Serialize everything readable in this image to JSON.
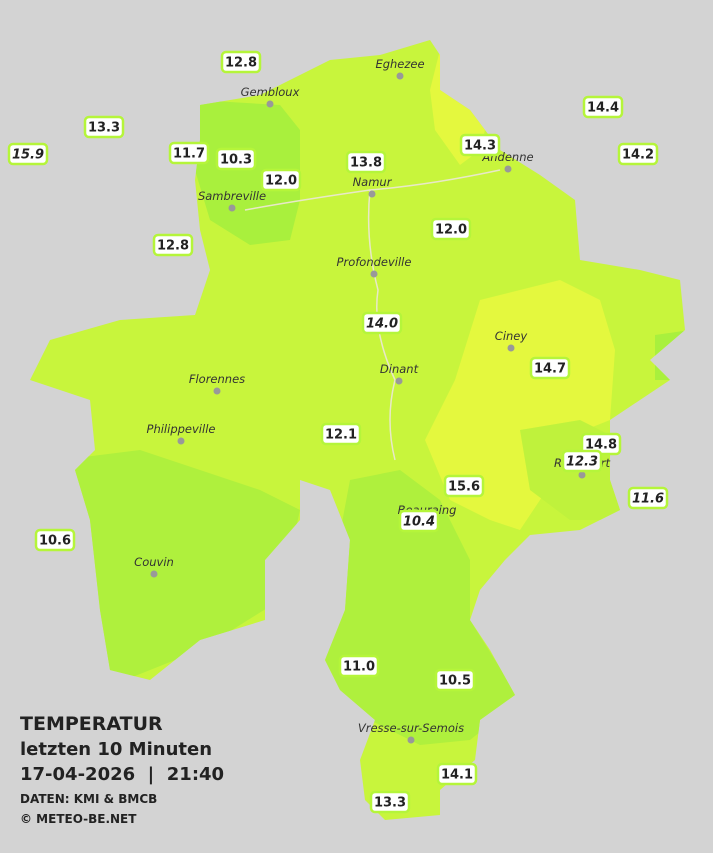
{
  "header": {
    "title": "TEMPERATUR",
    "subtitle": "letzten 10 Minuten",
    "datetime": "17-04-2026  |  21:40",
    "source": "DATEN: KMI & BMCB",
    "copyright": "© METEO-BE.NET"
  },
  "cities": [
    {
      "name": "Eghezee"
    },
    {
      "name": "Gembloux"
    },
    {
      "name": "Andenne"
    },
    {
      "name": "Namur"
    },
    {
      "name": "Sambreville"
    },
    {
      "name": "Profondeville"
    },
    {
      "name": "Ciney"
    },
    {
      "name": "Dinant"
    },
    {
      "name": "Florennes"
    },
    {
      "name": "Philippeville"
    },
    {
      "name": "Rochefort"
    },
    {
      "name": "Couvin"
    },
    {
      "name": "Beauraing"
    },
    {
      "name": "Vresse-sur-Semois"
    }
  ],
  "stations": [
    {
      "label": "12.8"
    },
    {
      "label": "13.3"
    },
    {
      "label": "15.9"
    },
    {
      "label": "11.7"
    },
    {
      "label": "10.3"
    },
    {
      "label": "12.0"
    },
    {
      "label": "13.8"
    },
    {
      "label": "14.3"
    },
    {
      "label": "14.4"
    },
    {
      "label": "14.2"
    },
    {
      "label": "12.8"
    },
    {
      "label": "12.0"
    },
    {
      "label": "14.0"
    },
    {
      "label": "14.7"
    },
    {
      "label": "12.1"
    },
    {
      "label": "14.8"
    },
    {
      "label": "12.3"
    },
    {
      "label": "11.6"
    },
    {
      "label": "15.6"
    },
    {
      "label": "10.4"
    },
    {
      "label": "10.6"
    },
    {
      "label": "11.0"
    },
    {
      "label": "10.5"
    },
    {
      "label": "14.1"
    },
    {
      "label": "13.3"
    }
  ]
}
